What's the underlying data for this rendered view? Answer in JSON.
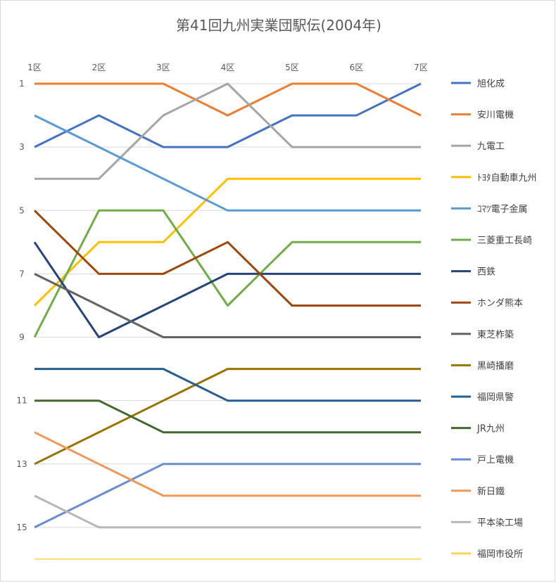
{
  "chart_data": {
    "type": "line",
    "title": "第41回九州実業団駅伝(2004年)",
    "categories": [
      "1区",
      "2区",
      "3区",
      "4区",
      "5区",
      "6区",
      "7区"
    ],
    "y_ticks": [
      "1",
      "3",
      "5",
      "7",
      "9",
      "11",
      "13",
      "15"
    ],
    "ylim": [
      1,
      16
    ],
    "y_reversed": true,
    "grid": true,
    "legend_position": "right",
    "series": [
      {
        "name": "旭化成",
        "color": "#4472C4",
        "values": [
          3,
          2,
          3,
          3,
          2,
          2,
          1
        ]
      },
      {
        "name": "安川電機",
        "color": "#ED7D31",
        "values": [
          1,
          1,
          1,
          2,
          1,
          1,
          2
        ]
      },
      {
        "name": "九電工",
        "color": "#A5A5A5",
        "values": [
          4,
          4,
          2,
          1,
          3,
          3,
          3
        ]
      },
      {
        "name": "ﾄﾖﾀ自動車九州",
        "color": "#FFC000",
        "values": [
          8,
          6,
          6,
          4,
          4,
          4,
          4
        ]
      },
      {
        "name": "ｺﾏﾂ電子金属",
        "color": "#5B9BD5",
        "values": [
          2,
          3,
          4,
          5,
          5,
          5,
          5
        ]
      },
      {
        "name": "三菱重工長崎",
        "color": "#70AD47",
        "values": [
          9,
          5,
          5,
          8,
          6,
          6,
          6
        ]
      },
      {
        "name": "西鉄",
        "color": "#264478",
        "values": [
          6,
          9,
          8,
          7,
          7,
          7,
          7
        ]
      },
      {
        "name": "ホンダ熊本",
        "color": "#9E480E",
        "values": [
          5,
          7,
          7,
          6,
          8,
          8,
          8
        ]
      },
      {
        "name": "東芝柞築",
        "color": "#636363",
        "values": [
          7,
          8,
          9,
          9,
          9,
          9,
          9
        ]
      },
      {
        "name": "黒崎播磨",
        "color": "#997300",
        "values": [
          13,
          12,
          11,
          10,
          10,
          10,
          10
        ]
      },
      {
        "name": "福岡県警",
        "color": "#255E91",
        "values": [
          10,
          10,
          10,
          11,
          11,
          11,
          11
        ]
      },
      {
        "name": "JR九州",
        "color": "#43682B",
        "values": [
          11,
          11,
          12,
          12,
          12,
          12,
          12
        ]
      },
      {
        "name": "戸上電機",
        "color": "#698ED0",
        "values": [
          15,
          14,
          13,
          13,
          13,
          13,
          13
        ]
      },
      {
        "name": "新日鐵",
        "color": "#F1975A",
        "values": [
          12,
          13,
          14,
          14,
          14,
          14,
          14
        ]
      },
      {
        "name": "平本染工場",
        "color": "#B7B7B7",
        "values": [
          14,
          15,
          15,
          15,
          15,
          15,
          15
        ]
      },
      {
        "name": "福岡市役所",
        "color": "#FFD34F",
        "values": [
          16,
          16,
          16,
          16,
          16,
          16,
          16
        ]
      }
    ]
  }
}
